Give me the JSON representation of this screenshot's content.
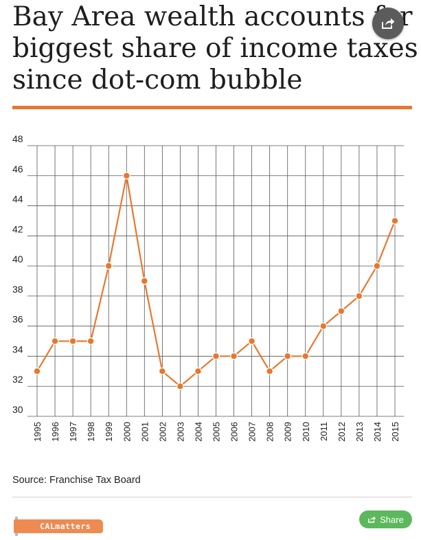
{
  "title_lines": [
    "Bay Area wealth accounts for",
    "biggest share of income taxes",
    "since dot-com bubble"
  ],
  "source": "Source: Franchise Tax Board",
  "logo_text": "CALmatters",
  "share_label": "Share",
  "icons": {
    "floating_share": "share-icon",
    "share_button": "share-icon"
  },
  "colors": {
    "accent": "#e8772e",
    "grid": "#555555",
    "share_button": "#5cb85c",
    "float_button": "#5b5b5b"
  },
  "chart_data": {
    "type": "line",
    "title": "",
    "xlabel": "",
    "ylabel": "",
    "ylim": [
      30,
      48
    ],
    "grid": true,
    "y_ticks": [
      30,
      32,
      34,
      36,
      38,
      40,
      42,
      44,
      46,
      48
    ],
    "categories": [
      "1995",
      "1996",
      "1997",
      "1998",
      "1999",
      "2000",
      "2001",
      "2002",
      "2003",
      "2004",
      "2005",
      "2006",
      "2007",
      "2008",
      "2009",
      "2010",
      "2011",
      "2012",
      "2013",
      "2014",
      "2015"
    ],
    "series": [
      {
        "values": [
          33,
          35,
          35,
          35,
          40,
          46,
          39,
          33,
          32,
          33,
          34,
          34,
          35,
          33,
          34,
          34,
          36,
          37,
          38,
          40,
          43
        ]
      }
    ],
    "line_color": "#e8772e"
  }
}
